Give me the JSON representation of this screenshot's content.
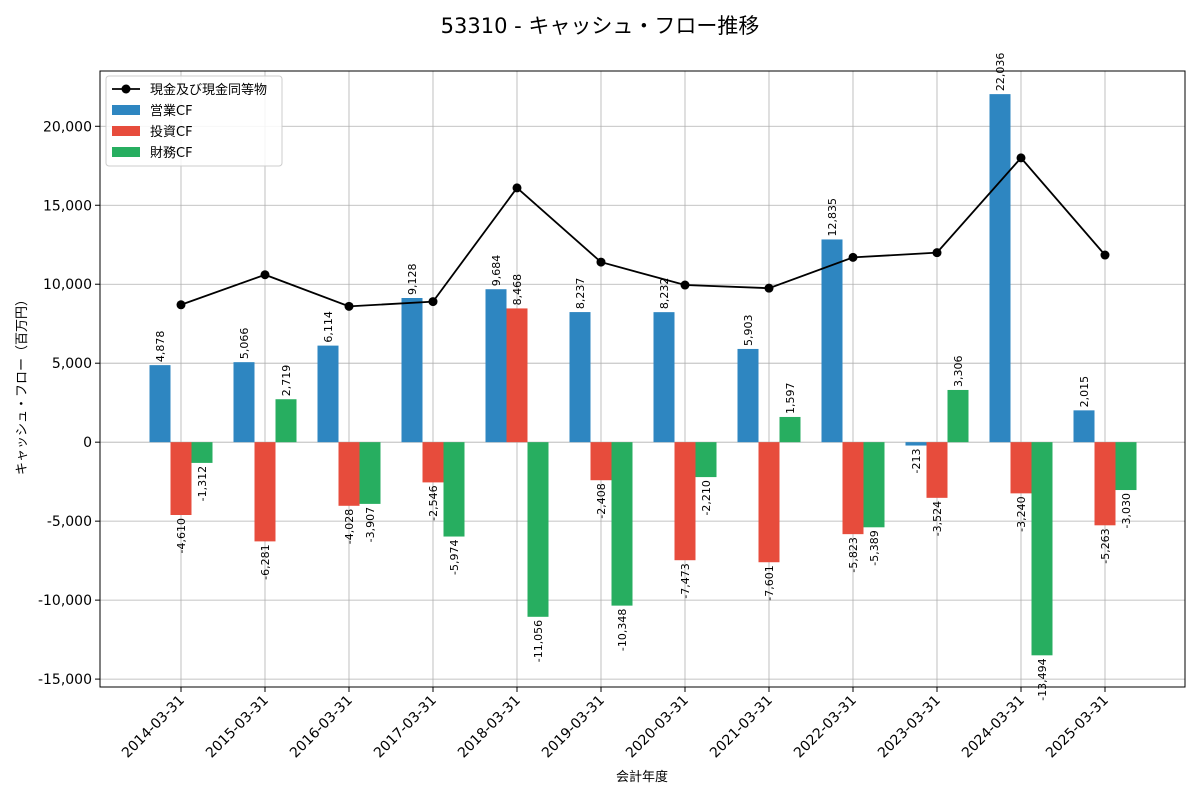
{
  "chart_data": {
    "type": "bar",
    "title": "53310 - キャッシュ・フロー推移",
    "xlabel": "会計年度",
    "ylabel": "キャッシュ・フロー（百万円）",
    "ylim": [
      -15500,
      23500
    ],
    "yticks": [
      -15000,
      -10000,
      -5000,
      0,
      5000,
      10000,
      15000,
      20000
    ],
    "grid": true,
    "legend_position": "top-left",
    "categories": [
      "2014-03-31",
      "2015-03-31",
      "2016-03-31",
      "2017-03-31",
      "2018-03-31",
      "2019-03-31",
      "2020-03-31",
      "2021-03-31",
      "2022-03-31",
      "2023-03-31",
      "2024-03-31",
      "2025-03-31"
    ],
    "series": [
      {
        "name": "営業CF",
        "kind": "bar",
        "color": "#2e86c1",
        "values": [
          4878,
          5066,
          6114,
          9128,
          9684,
          8237,
          8232,
          5903,
          12835,
          -213,
          22036,
          2015
        ]
      },
      {
        "name": "投資CF",
        "kind": "bar",
        "color": "#e74c3c",
        "values": [
          -4610,
          -6281,
          -4028,
          -2546,
          8468,
          -2408,
          -7473,
          -7601,
          -5823,
          -3524,
          -3240,
          -5263
        ]
      },
      {
        "name": "財務CF",
        "kind": "bar",
        "color": "#27ae60",
        "values": [
          -1312,
          2719,
          -3907,
          -5974,
          -11056,
          -10348,
          -2210,
          1597,
          -5389,
          3306,
          -13494,
          -3030
        ]
      },
      {
        "name": "現金及び現金同等物",
        "kind": "line",
        "color": "#000000",
        "values": [
          8700,
          10600,
          8600,
          8900,
          16100,
          11400,
          9950,
          9750,
          11700,
          12000,
          18000,
          11850
        ]
      }
    ]
  }
}
